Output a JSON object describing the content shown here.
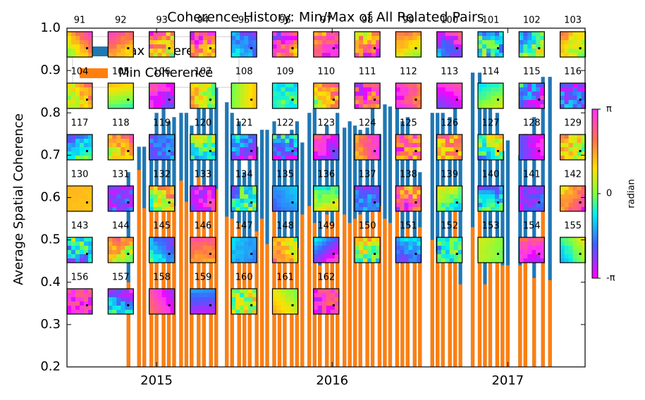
{
  "chart_data": {
    "type": "bar",
    "title": "Coherence History: Min/Max of All Related Pairs",
    "ylabel": "Average Spatial Coherence",
    "x": [
      2014.84,
      2014.9,
      2014.93,
      2014.97,
      2015.0,
      2015.04,
      2015.07,
      2015.1,
      2015.14,
      2015.17,
      2015.2,
      2015.24,
      2015.27,
      2015.31,
      2015.34,
      2015.4,
      2015.43,
      2015.47,
      2015.5,
      2015.53,
      2015.57,
      2015.6,
      2015.63,
      2015.67,
      2015.7,
      2015.73,
      2015.77,
      2015.8,
      2015.83,
      2015.87,
      2015.9,
      2015.93,
      2015.97,
      2016.0,
      2016.03,
      2016.07,
      2016.1,
      2016.13,
      2016.16,
      2016.2,
      2016.23,
      2016.27,
      2016.3,
      2016.33,
      2016.37,
      2016.4,
      2016.43,
      2016.47,
      2016.5,
      2016.57,
      2016.6,
      2016.63,
      2016.67,
      2016.7,
      2016.73,
      2016.8,
      2016.84,
      2016.87,
      2016.9,
      2016.94,
      2016.97,
      2017.0,
      2017.07,
      2017.1,
      2017.15,
      2017.2,
      2017.24
    ],
    "series": [
      {
        "name": "Max Coherence",
        "color": "#1f77b4",
        "values": [
          0.66,
          0.72,
          0.72,
          0.75,
          0.8,
          0.82,
          0.78,
          0.79,
          0.8,
          0.8,
          0.77,
          0.85,
          0.85,
          0.83,
          0.86,
          0.825,
          0.8,
          0.78,
          0.66,
          0.74,
          0.72,
          0.76,
          0.76,
          0.78,
          0.75,
          0.7,
          0.76,
          0.78,
          0.73,
          0.8,
          0.81,
          0.75,
          0.77,
          0.7,
          0.8,
          0.765,
          0.78,
          0.77,
          0.76,
          0.765,
          0.81,
          0.75,
          0.82,
          0.815,
          0.82,
          0.78,
          0.79,
          0.69,
          0.66,
          0.8,
          0.8,
          0.8,
          0.79,
          0.82,
          0.69,
          0.895,
          0.895,
          0.82,
          0.815,
          0.8,
          0.71,
          0.735,
          0.7,
          0.75,
          0.79,
          0.885,
          0.885
        ]
      },
      {
        "name": "Min Coherence",
        "color": "#ff7f0e",
        "values": [
          0.4,
          0.665,
          0.575,
          0.61,
          0.6,
          0.6,
          0.58,
          0.58,
          0.64,
          0.59,
          0.61,
          0.65,
          0.63,
          0.57,
          0.62,
          0.555,
          0.55,
          0.54,
          0.5,
          0.48,
          0.52,
          0.55,
          0.49,
          0.58,
          0.47,
          0.5,
          0.48,
          0.48,
          0.56,
          0.58,
          0.54,
          0.44,
          0.56,
          0.54,
          0.58,
          0.56,
          0.54,
          0.55,
          0.56,
          0.54,
          0.58,
          0.58,
          0.55,
          0.54,
          0.57,
          0.48,
          0.53,
          0.5,
          0.53,
          0.5,
          0.47,
          0.45,
          0.48,
          0.58,
          0.395,
          0.53,
          0.57,
          0.395,
          0.5,
          0.46,
          0.44,
          0.44,
          0.44,
          0.47,
          0.41,
          0.58,
          0.405
        ]
      }
    ],
    "xlim": [
      2014.49,
      2017.44
    ],
    "xticks": [
      2015,
      2016,
      2017
    ],
    "ylim": [
      0.2,
      1.0
    ],
    "yticks": [
      0.2,
      0.3,
      0.4,
      0.5,
      0.6,
      0.7,
      0.8,
      0.9,
      {
        "value": 1.0,
        "label": "1.0"
      }
    ],
    "legend": "upper left",
    "inset_labels": [
      "91",
      "92",
      "93",
      "94",
      "95",
      "96",
      "97",
      "98",
      "99",
      "100",
      "101",
      "102",
      "103",
      "104",
      "105",
      "106",
      "107",
      "108",
      "109",
      "110",
      "111",
      "112",
      "113",
      "114",
      "115",
      "116",
      "117",
      "118",
      "119",
      "120",
      "121",
      "122",
      "123",
      "124",
      "125",
      "126",
      "127",
      "128",
      "129",
      "130",
      "131",
      "132",
      "133",
      "134",
      "135",
      "136",
      "137",
      "138",
      "139",
      "140",
      "141",
      "142",
      "143",
      "144",
      "145",
      "146",
      "147",
      "148",
      "149",
      "150",
      "151",
      "152",
      "153",
      "154",
      "155",
      "156",
      "157",
      "158",
      "159",
      "160",
      "161",
      "162"
    ],
    "colorbar": {
      "label": "radian",
      "lim": [
        -3.14159,
        3.14159
      ],
      "ticks": [
        {
          "value": 3.14159,
          "label": "π"
        },
        0,
        {
          "value": -3.14159,
          "label": "-π"
        }
      ]
    }
  }
}
